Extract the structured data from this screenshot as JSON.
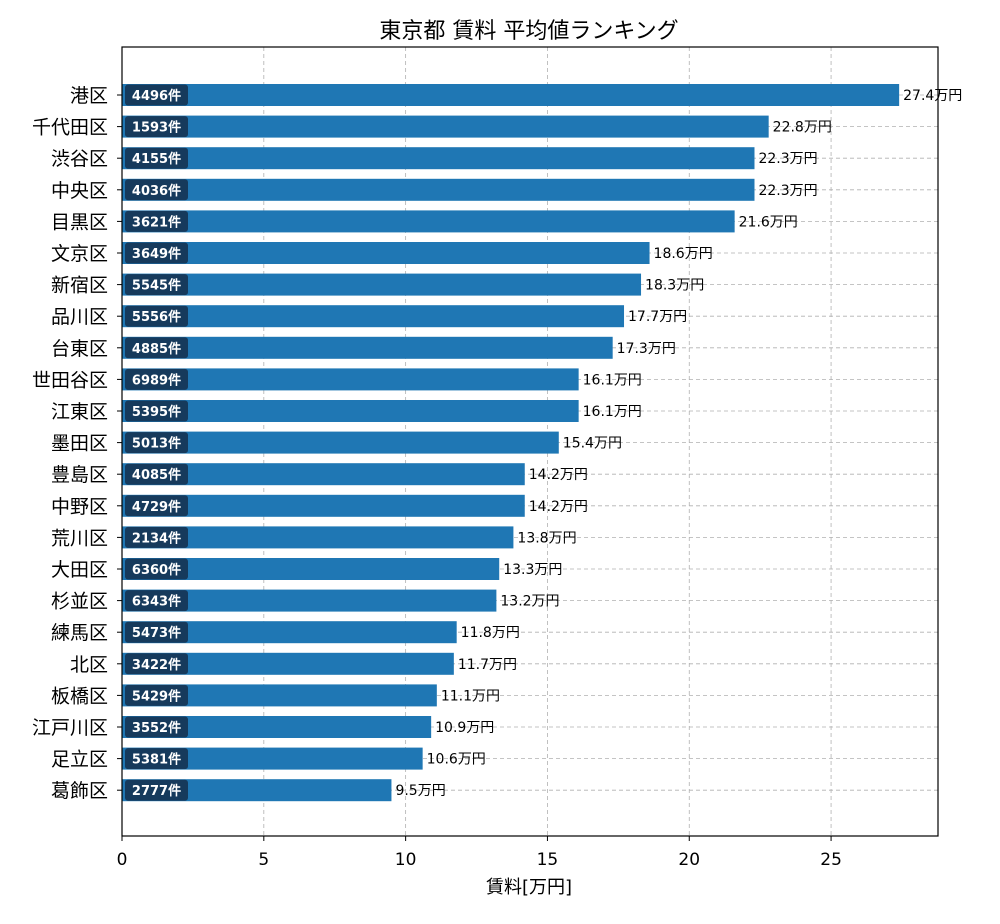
{
  "colors": {
    "bar": "#1f77b4",
    "badge": "#163a5c",
    "grid": "#b0b0b0",
    "axis": "#000000"
  },
  "chart_data": {
    "type": "bar",
    "orientation": "horizontal",
    "title": "東京都 賃料 平均値ランキング",
    "xlabel": "賃料[万円]",
    "ylabel": "",
    "xlim": [
      0,
      28.77
    ],
    "xticks": [
      0,
      5,
      10,
      15,
      20,
      25
    ],
    "grid": true,
    "value_suffix": "万円",
    "count_suffix": "件",
    "categories": [
      "港区",
      "千代田区",
      "渋谷区",
      "中央区",
      "目黒区",
      "文京区",
      "新宿区",
      "品川区",
      "台東区",
      "世田谷区",
      "江東区",
      "墨田区",
      "豊島区",
      "中野区",
      "荒川区",
      "大田区",
      "杉並区",
      "練馬区",
      "北区",
      "板橋区",
      "江戸川区",
      "足立区",
      "葛飾区"
    ],
    "values": [
      27.4,
      22.8,
      22.3,
      22.3,
      21.6,
      18.6,
      18.3,
      17.7,
      17.3,
      16.1,
      16.1,
      15.4,
      14.2,
      14.2,
      13.8,
      13.3,
      13.2,
      11.8,
      11.7,
      11.1,
      10.9,
      10.6,
      9.5
    ],
    "counts": [
      4496,
      1593,
      4155,
      4036,
      3621,
      3649,
      5545,
      5556,
      4885,
      6989,
      5395,
      5013,
      4085,
      4729,
      2134,
      6360,
      6343,
      5473,
      3422,
      5429,
      3552,
      5381,
      2777
    ]
  }
}
